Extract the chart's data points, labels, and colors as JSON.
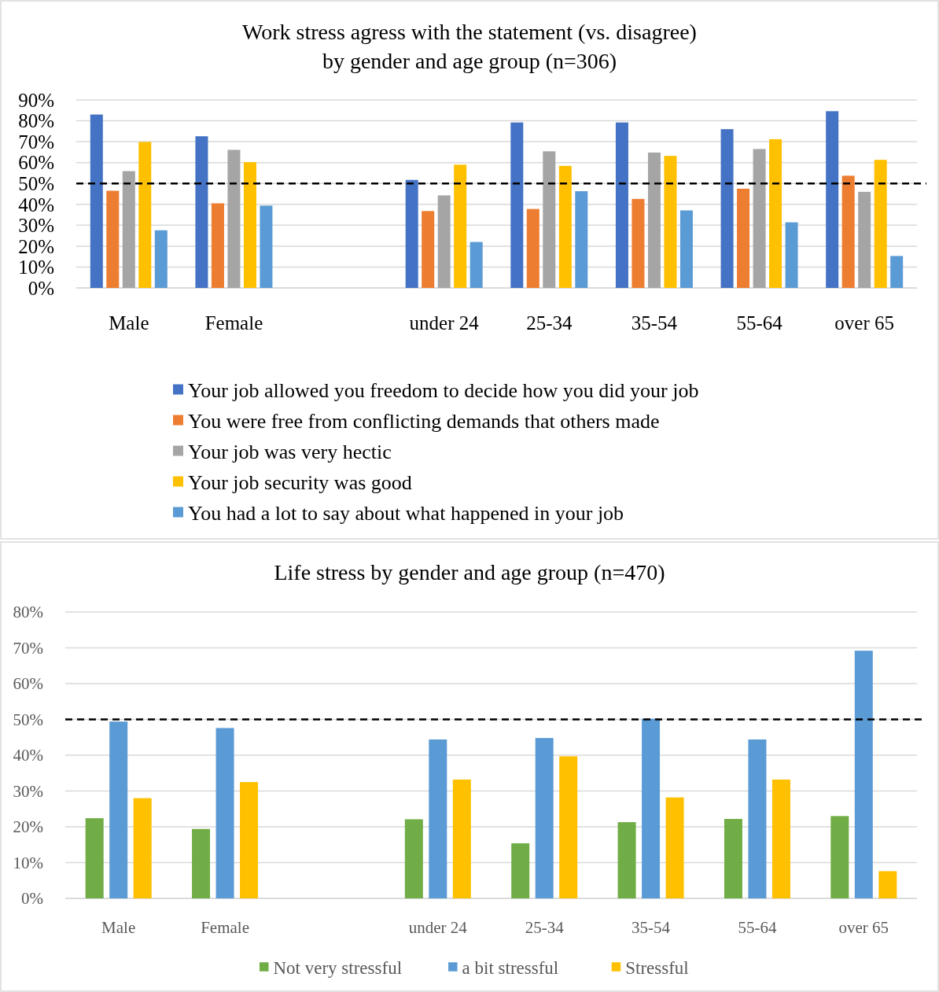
{
  "chart_data": [
    {
      "type": "bar",
      "title": "Work stress agress with the statement (vs. disagree)\nby gender and age group (n=306)",
      "categories": [
        "Male",
        "Female",
        null,
        "under 24",
        "25-34",
        "35-54",
        "55-64",
        "over 65"
      ],
      "series": [
        {
          "name": "Your job allowed you freedom to decide how you did your job",
          "color": "#4472c4",
          "values": [
            83,
            72.6,
            null,
            51.7,
            79.2,
            79.2,
            76,
            84.6
          ]
        },
        {
          "name": "You were free from conflicting demands that others made",
          "color": "#ed7d31",
          "values": [
            46.5,
            40.5,
            null,
            36.8,
            37.8,
            42.6,
            47.5,
            53.7
          ]
        },
        {
          "name": "Your job was very hectic",
          "color": "#a5a5a5",
          "values": [
            55.9,
            66.1,
            null,
            44.3,
            65.4,
            64.8,
            66.5,
            46
          ]
        },
        {
          "name": "Your job security was good",
          "color": "#ffc000",
          "values": [
            69.9,
            60.2,
            null,
            59,
            58.4,
            63.2,
            71.2,
            61.3
          ]
        },
        {
          "name": "You had a lot to say about what happened in your job",
          "color": "#5b9bd5",
          "values": [
            27.6,
            39.4,
            null,
            22,
            46.3,
            37.1,
            31.4,
            15.3
          ]
        }
      ],
      "ylim": [
        0,
        90
      ],
      "yticks": [
        {
          "value": 0,
          "label": "0%"
        },
        {
          "value": 10,
          "label": "10%"
        },
        {
          "value": 20,
          "label": "20%"
        },
        {
          "value": 30,
          "label": "30%"
        },
        {
          "value": 40,
          "label": "40%"
        },
        {
          "value": 50,
          "label": "50%"
        },
        {
          "value": 60,
          "label": "60%"
        },
        {
          "value": 70,
          "label": "70%"
        },
        {
          "value": 80,
          "label": "80%"
        },
        {
          "value": 90,
          "label": "90%"
        }
      ],
      "grid": "y",
      "legend": "bottom",
      "ref_lines": [
        {
          "axis": "y",
          "value": 50,
          "color": "#000000",
          "line_style": "dashed"
        }
      ]
    },
    {
      "type": "bar",
      "title": "Life stress by gender and age group (n=470)",
      "categories": [
        "Male",
        "Female",
        null,
        "under 24",
        "25-34",
        "35-54",
        "55-64",
        "over 65"
      ],
      "series": [
        {
          "name": "Not very stressful",
          "color": "#70ad47",
          "values": [
            22.4,
            19.4,
            null,
            22.1,
            15.4,
            21.3,
            22.2,
            23
          ]
        },
        {
          "name": "a bit stressful",
          "color": "#5b9bd5",
          "values": [
            49.4,
            47.6,
            null,
            44.4,
            44.8,
            50.2,
            44.4,
            69.2
          ]
        },
        {
          "name": "Stressful",
          "color": "#ffc000",
          "values": [
            28,
            32.5,
            null,
            33.2,
            39.7,
            28.2,
            33.2,
            7.6
          ]
        }
      ],
      "ylim": [
        0,
        80
      ],
      "yticks": [
        {
          "value": 0,
          "label": "0%"
        },
        {
          "value": 10,
          "label": "10%"
        },
        {
          "value": 20,
          "label": "20%"
        },
        {
          "value": 30,
          "label": "30%"
        },
        {
          "value": 40,
          "label": "40%"
        },
        {
          "value": 50,
          "label": "50%"
        },
        {
          "value": 60,
          "label": "60%"
        },
        {
          "value": 70,
          "label": "70%"
        },
        {
          "value": 80,
          "label": "80%"
        }
      ],
      "grid": "y",
      "legend": "bottom",
      "ref_lines": [
        {
          "axis": "y",
          "value": 50,
          "color": "#000000",
          "line_style": "dashed"
        }
      ]
    }
  ]
}
